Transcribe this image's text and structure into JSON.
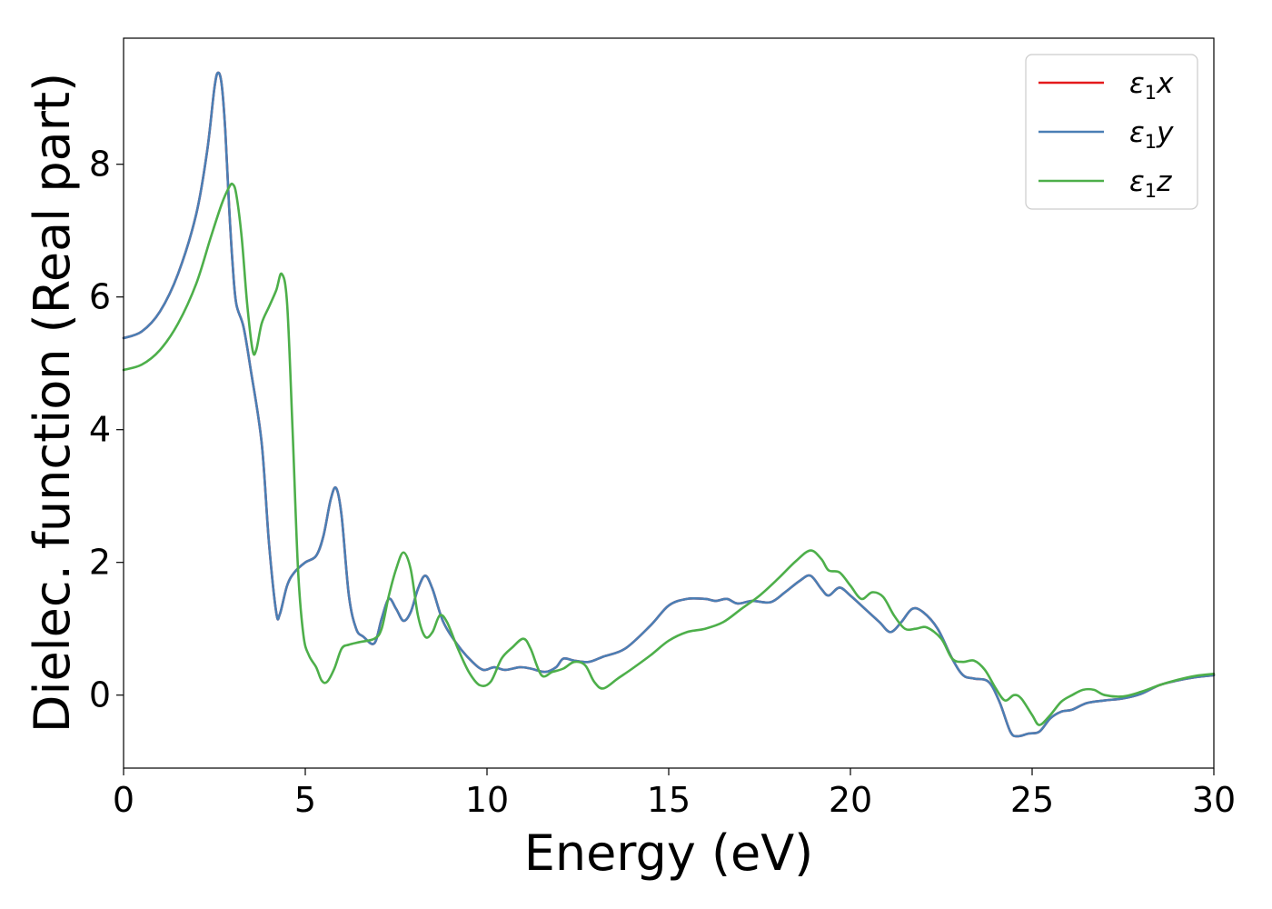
{
  "chart_data": {
    "type": "line",
    "xlabel": "Energy (eV)",
    "ylabel": "Dielec. function (Real part)",
    "xlim": [
      0,
      30
    ],
    "ylim": [
      -1.1,
      9.9
    ],
    "xticks": [
      0,
      5,
      10,
      15,
      20,
      25,
      30
    ],
    "yticks": [
      0,
      2,
      4,
      6,
      8
    ],
    "grid": false,
    "legend_position": "top-right",
    "series": [
      {
        "name": "ε₁x",
        "legend": {
          "base": "ε",
          "sub": "1",
          "var": "x"
        },
        "color": "#e41a1c",
        "points": [
          [
            0,
            5.38
          ],
          [
            0.5,
            5.48
          ],
          [
            1.0,
            5.78
          ],
          [
            1.5,
            6.35
          ],
          [
            2.0,
            7.25
          ],
          [
            2.3,
            8.2
          ],
          [
            2.5,
            9.15
          ],
          [
            2.6,
            9.38
          ],
          [
            2.7,
            9.2
          ],
          [
            2.8,
            8.5
          ],
          [
            2.9,
            7.4
          ],
          [
            3.0,
            6.5
          ],
          [
            3.1,
            5.9
          ],
          [
            3.3,
            5.55
          ],
          [
            3.5,
            4.9
          ],
          [
            3.8,
            3.8
          ],
          [
            4.0,
            2.3
          ],
          [
            4.2,
            1.25
          ],
          [
            4.3,
            1.22
          ],
          [
            4.5,
            1.65
          ],
          [
            4.7,
            1.85
          ],
          [
            5.0,
            2.0
          ],
          [
            5.3,
            2.1
          ],
          [
            5.5,
            2.4
          ],
          [
            5.7,
            2.95
          ],
          [
            5.85,
            3.12
          ],
          [
            6.0,
            2.7
          ],
          [
            6.2,
            1.5
          ],
          [
            6.4,
            1.0
          ],
          [
            6.6,
            0.88
          ],
          [
            6.9,
            0.78
          ],
          [
            7.1,
            1.15
          ],
          [
            7.3,
            1.45
          ],
          [
            7.5,
            1.3
          ],
          [
            7.7,
            1.12
          ],
          [
            7.9,
            1.25
          ],
          [
            8.1,
            1.6
          ],
          [
            8.3,
            1.8
          ],
          [
            8.5,
            1.6
          ],
          [
            8.8,
            1.1
          ],
          [
            9.2,
            0.75
          ],
          [
            9.6,
            0.5
          ],
          [
            9.9,
            0.38
          ],
          [
            10.2,
            0.42
          ],
          [
            10.5,
            0.38
          ],
          [
            10.9,
            0.42
          ],
          [
            11.2,
            0.4
          ],
          [
            11.6,
            0.35
          ],
          [
            11.9,
            0.42
          ],
          [
            12.1,
            0.55
          ],
          [
            12.4,
            0.52
          ],
          [
            12.8,
            0.5
          ],
          [
            13.2,
            0.58
          ],
          [
            13.8,
            0.7
          ],
          [
            14.5,
            1.05
          ],
          [
            15.0,
            1.35
          ],
          [
            15.5,
            1.45
          ],
          [
            16.0,
            1.45
          ],
          [
            16.3,
            1.42
          ],
          [
            16.6,
            1.45
          ],
          [
            16.9,
            1.38
          ],
          [
            17.3,
            1.42
          ],
          [
            17.8,
            1.4
          ],
          [
            18.2,
            1.55
          ],
          [
            18.6,
            1.72
          ],
          [
            18.9,
            1.8
          ],
          [
            19.2,
            1.6
          ],
          [
            19.4,
            1.5
          ],
          [
            19.7,
            1.62
          ],
          [
            20.0,
            1.5
          ],
          [
            20.4,
            1.3
          ],
          [
            20.8,
            1.1
          ],
          [
            21.1,
            0.95
          ],
          [
            21.4,
            1.1
          ],
          [
            21.7,
            1.3
          ],
          [
            22.0,
            1.25
          ],
          [
            22.4,
            1.0
          ],
          [
            22.8,
            0.55
          ],
          [
            23.1,
            0.3
          ],
          [
            23.4,
            0.25
          ],
          [
            23.8,
            0.2
          ],
          [
            24.1,
            -0.1
          ],
          [
            24.4,
            -0.55
          ],
          [
            24.6,
            -0.62
          ],
          [
            24.9,
            -0.58
          ],
          [
            25.2,
            -0.55
          ],
          [
            25.5,
            -0.35
          ],
          [
            25.8,
            -0.25
          ],
          [
            26.1,
            -0.22
          ],
          [
            26.5,
            -0.12
          ],
          [
            27.0,
            -0.08
          ],
          [
            27.5,
            -0.05
          ],
          [
            28.0,
            0.02
          ],
          [
            28.5,
            0.15
          ],
          [
            29.0,
            0.22
          ],
          [
            29.5,
            0.27
          ],
          [
            30.0,
            0.3
          ]
        ]
      },
      {
        "name": "ε₁y",
        "legend": {
          "base": "ε",
          "sub": "1",
          "var": "y"
        },
        "color": "#4a7fb5",
        "points": [
          [
            0,
            5.38
          ],
          [
            0.5,
            5.48
          ],
          [
            1.0,
            5.78
          ],
          [
            1.5,
            6.35
          ],
          [
            2.0,
            7.25
          ],
          [
            2.3,
            8.2
          ],
          [
            2.5,
            9.15
          ],
          [
            2.6,
            9.38
          ],
          [
            2.7,
            9.2
          ],
          [
            2.8,
            8.5
          ],
          [
            2.9,
            7.4
          ],
          [
            3.0,
            6.5
          ],
          [
            3.1,
            5.9
          ],
          [
            3.3,
            5.55
          ],
          [
            3.5,
            4.9
          ],
          [
            3.8,
            3.8
          ],
          [
            4.0,
            2.3
          ],
          [
            4.2,
            1.25
          ],
          [
            4.3,
            1.22
          ],
          [
            4.5,
            1.65
          ],
          [
            4.7,
            1.85
          ],
          [
            5.0,
            2.0
          ],
          [
            5.3,
            2.1
          ],
          [
            5.5,
            2.4
          ],
          [
            5.7,
            2.95
          ],
          [
            5.85,
            3.12
          ],
          [
            6.0,
            2.7
          ],
          [
            6.2,
            1.5
          ],
          [
            6.4,
            1.0
          ],
          [
            6.6,
            0.88
          ],
          [
            6.9,
            0.78
          ],
          [
            7.1,
            1.15
          ],
          [
            7.3,
            1.45
          ],
          [
            7.5,
            1.3
          ],
          [
            7.7,
            1.12
          ],
          [
            7.9,
            1.25
          ],
          [
            8.1,
            1.6
          ],
          [
            8.3,
            1.8
          ],
          [
            8.5,
            1.6
          ],
          [
            8.8,
            1.1
          ],
          [
            9.2,
            0.75
          ],
          [
            9.6,
            0.5
          ],
          [
            9.9,
            0.38
          ],
          [
            10.2,
            0.42
          ],
          [
            10.5,
            0.38
          ],
          [
            10.9,
            0.42
          ],
          [
            11.2,
            0.4
          ],
          [
            11.6,
            0.35
          ],
          [
            11.9,
            0.42
          ],
          [
            12.1,
            0.55
          ],
          [
            12.4,
            0.52
          ],
          [
            12.8,
            0.5
          ],
          [
            13.2,
            0.58
          ],
          [
            13.8,
            0.7
          ],
          [
            14.5,
            1.05
          ],
          [
            15.0,
            1.35
          ],
          [
            15.5,
            1.45
          ],
          [
            16.0,
            1.45
          ],
          [
            16.3,
            1.42
          ],
          [
            16.6,
            1.45
          ],
          [
            16.9,
            1.38
          ],
          [
            17.3,
            1.42
          ],
          [
            17.8,
            1.4
          ],
          [
            18.2,
            1.55
          ],
          [
            18.6,
            1.72
          ],
          [
            18.9,
            1.8
          ],
          [
            19.2,
            1.6
          ],
          [
            19.4,
            1.5
          ],
          [
            19.7,
            1.62
          ],
          [
            20.0,
            1.5
          ],
          [
            20.4,
            1.3
          ],
          [
            20.8,
            1.1
          ],
          [
            21.1,
            0.95
          ],
          [
            21.4,
            1.1
          ],
          [
            21.7,
            1.3
          ],
          [
            22.0,
            1.25
          ],
          [
            22.4,
            1.0
          ],
          [
            22.8,
            0.55
          ],
          [
            23.1,
            0.3
          ],
          [
            23.4,
            0.25
          ],
          [
            23.8,
            0.2
          ],
          [
            24.1,
            -0.1
          ],
          [
            24.4,
            -0.55
          ],
          [
            24.6,
            -0.62
          ],
          [
            24.9,
            -0.58
          ],
          [
            25.2,
            -0.55
          ],
          [
            25.5,
            -0.35
          ],
          [
            25.8,
            -0.25
          ],
          [
            26.1,
            -0.22
          ],
          [
            26.5,
            -0.12
          ],
          [
            27.0,
            -0.08
          ],
          [
            27.5,
            -0.05
          ],
          [
            28.0,
            0.02
          ],
          [
            28.5,
            0.15
          ],
          [
            29.0,
            0.22
          ],
          [
            29.5,
            0.27
          ],
          [
            30.0,
            0.3
          ]
        ]
      },
      {
        "name": "ε₁z",
        "legend": {
          "base": "ε",
          "sub": "1",
          "var": "z"
        },
        "color": "#4daf4a",
        "points": [
          [
            0,
            4.9
          ],
          [
            0.5,
            4.98
          ],
          [
            1.0,
            5.2
          ],
          [
            1.5,
            5.6
          ],
          [
            2.0,
            6.2
          ],
          [
            2.4,
            6.9
          ],
          [
            2.7,
            7.4
          ],
          [
            2.9,
            7.65
          ],
          [
            3.0,
            7.7
          ],
          [
            3.1,
            7.55
          ],
          [
            3.25,
            6.9
          ],
          [
            3.4,
            5.9
          ],
          [
            3.55,
            5.2
          ],
          [
            3.65,
            5.2
          ],
          [
            3.8,
            5.6
          ],
          [
            4.0,
            5.85
          ],
          [
            4.2,
            6.1
          ],
          [
            4.35,
            6.35
          ],
          [
            4.5,
            5.9
          ],
          [
            4.65,
            4.0
          ],
          [
            4.8,
            1.9
          ],
          [
            4.95,
            0.9
          ],
          [
            5.1,
            0.6
          ],
          [
            5.3,
            0.42
          ],
          [
            5.45,
            0.22
          ],
          [
            5.6,
            0.2
          ],
          [
            5.8,
            0.4
          ],
          [
            6.0,
            0.7
          ],
          [
            6.2,
            0.76
          ],
          [
            6.5,
            0.8
          ],
          [
            6.9,
            0.85
          ],
          [
            7.1,
            1.0
          ],
          [
            7.3,
            1.5
          ],
          [
            7.5,
            1.9
          ],
          [
            7.7,
            2.15
          ],
          [
            7.9,
            1.9
          ],
          [
            8.1,
            1.2
          ],
          [
            8.3,
            0.88
          ],
          [
            8.5,
            0.95
          ],
          [
            8.7,
            1.2
          ],
          [
            8.9,
            1.1
          ],
          [
            9.2,
            0.7
          ],
          [
            9.5,
            0.35
          ],
          [
            9.8,
            0.15
          ],
          [
            10.1,
            0.2
          ],
          [
            10.4,
            0.55
          ],
          [
            10.7,
            0.72
          ],
          [
            11.0,
            0.85
          ],
          [
            11.2,
            0.7
          ],
          [
            11.5,
            0.3
          ],
          [
            11.8,
            0.35
          ],
          [
            12.1,
            0.4
          ],
          [
            12.4,
            0.5
          ],
          [
            12.7,
            0.45
          ],
          [
            12.95,
            0.2
          ],
          [
            13.2,
            0.1
          ],
          [
            13.6,
            0.25
          ],
          [
            14.0,
            0.4
          ],
          [
            14.5,
            0.6
          ],
          [
            15.0,
            0.82
          ],
          [
            15.5,
            0.95
          ],
          [
            16.0,
            1.0
          ],
          [
            16.5,
            1.1
          ],
          [
            17.0,
            1.3
          ],
          [
            17.5,
            1.5
          ],
          [
            18.0,
            1.75
          ],
          [
            18.5,
            2.02
          ],
          [
            18.9,
            2.18
          ],
          [
            19.2,
            2.05
          ],
          [
            19.4,
            1.88
          ],
          [
            19.7,
            1.85
          ],
          [
            20.0,
            1.65
          ],
          [
            20.3,
            1.45
          ],
          [
            20.6,
            1.55
          ],
          [
            20.9,
            1.48
          ],
          [
            21.2,
            1.2
          ],
          [
            21.5,
            1.0
          ],
          [
            21.8,
            1.0
          ],
          [
            22.1,
            1.02
          ],
          [
            22.5,
            0.85
          ],
          [
            22.8,
            0.55
          ],
          [
            23.1,
            0.5
          ],
          [
            23.4,
            0.52
          ],
          [
            23.7,
            0.38
          ],
          [
            24.0,
            0.1
          ],
          [
            24.25,
            -0.08
          ],
          [
            24.5,
            0.0
          ],
          [
            24.7,
            -0.05
          ],
          [
            25.0,
            -0.3
          ],
          [
            25.2,
            -0.45
          ],
          [
            25.5,
            -0.3
          ],
          [
            25.8,
            -0.1
          ],
          [
            26.1,
            0.0
          ],
          [
            26.4,
            0.08
          ],
          [
            26.7,
            0.08
          ],
          [
            27.0,
            0.0
          ],
          [
            27.5,
            -0.02
          ],
          [
            28.0,
            0.05
          ],
          [
            28.5,
            0.15
          ],
          [
            29.0,
            0.23
          ],
          [
            29.5,
            0.29
          ],
          [
            30.0,
            0.32
          ]
        ]
      }
    ]
  }
}
